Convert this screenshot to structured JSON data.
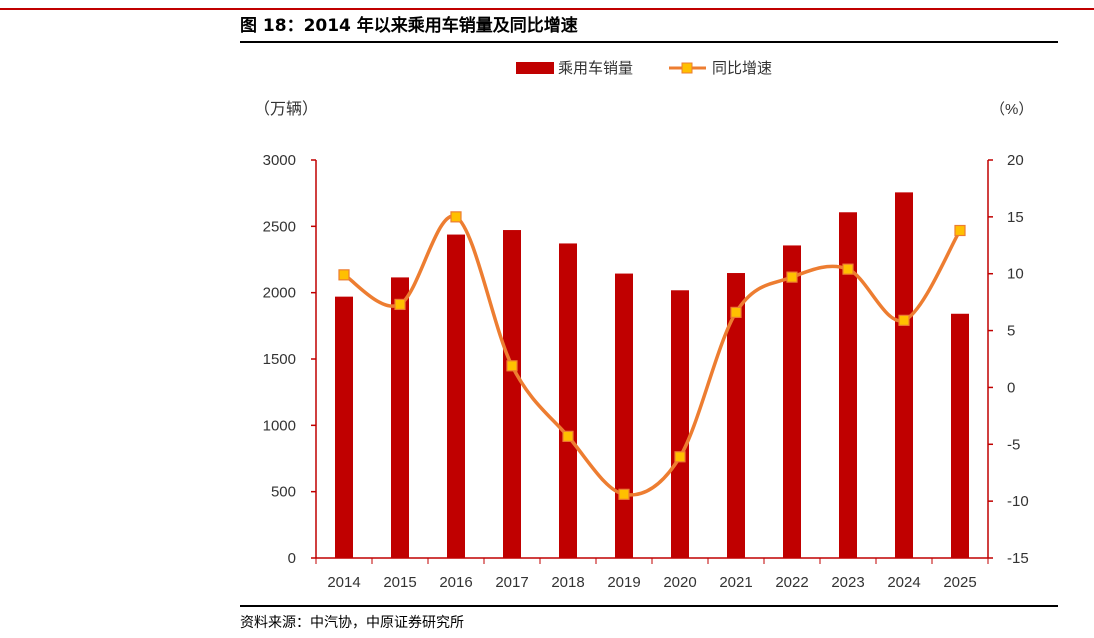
{
  "title": "图 18：2014 年以来乘用车销量及同比增速",
  "source": "资料来源：中汽协，中原证券研究所",
  "colors": {
    "bar": "#c00000",
    "line": "#ed7d31",
    "marker_fill": "#ffc000",
    "marker_edge": "#ed7d31",
    "axis_right": "#c00000",
    "rule_top": "#c00000"
  },
  "chart_data": {
    "type": "bar",
    "categories": [
      "2014",
      "2015",
      "2016",
      "2017",
      "2018",
      "2019",
      "2020",
      "2021",
      "2022",
      "2023",
      "2024",
      "2025"
    ],
    "series": [
      {
        "name": "乘用车销量",
        "type": "bar",
        "axis": "left",
        "values": [
          1970,
          2115,
          2438,
          2472,
          2371,
          2144,
          2018,
          2148,
          2356,
          2606,
          2756,
          1841
        ]
      },
      {
        "name": "同比增速",
        "type": "line",
        "axis": "right",
        "smooth": true,
        "values": [
          9.9,
          7.3,
          15.0,
          1.9,
          -4.3,
          -9.4,
          -6.1,
          6.6,
          9.7,
          10.4,
          5.9,
          13.8
        ]
      }
    ],
    "y_left": {
      "label": "（万辆）",
      "ylim": [
        0,
        3000
      ],
      "ticks": [
        "3000",
        "2500",
        "2000",
        "1500",
        "1000",
        "500",
        "0"
      ]
    },
    "y_right": {
      "label": "（%）",
      "ylim": [
        -15,
        20
      ],
      "ticks": [
        "20",
        "15",
        "10",
        "5",
        "0",
        "-5",
        "-10",
        "-15"
      ]
    },
    "legend_position": "top-center",
    "grid": false
  }
}
